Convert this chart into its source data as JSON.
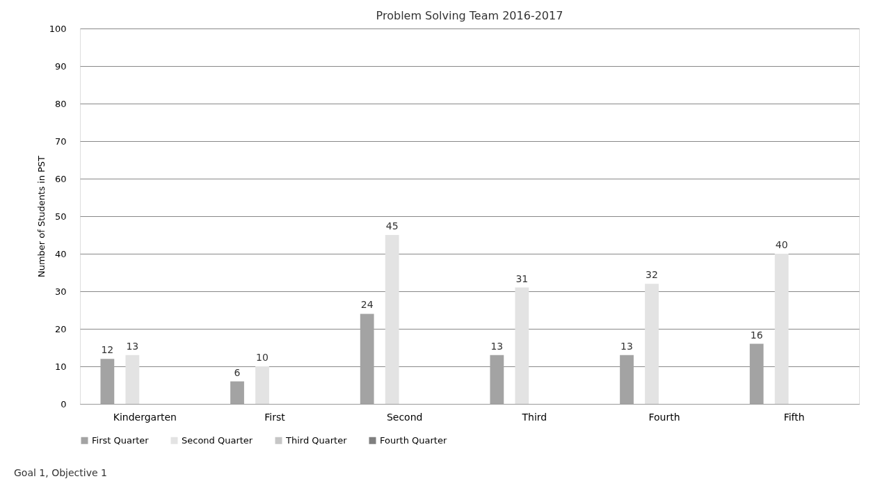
{
  "chart_data": {
    "type": "bar",
    "title": "Problem Solving Team 2016-2017",
    "ylabel": "Number of Students in PST",
    "categories": [
      "Kindergarten",
      "First",
      "Second",
      "Third",
      "Fourth",
      "Fifth"
    ],
    "series": [
      {
        "name": "First Quarter",
        "color": "#a3a3a3",
        "values": [
          12,
          6,
          24,
          13,
          13,
          16
        ]
      },
      {
        "name": "Second Quarter",
        "color": "#e3e3e3",
        "values": [
          13,
          10,
          45,
          31,
          32,
          40
        ]
      },
      {
        "name": "Third Quarter",
        "color": "#c6c6c6",
        "values": [
          null,
          null,
          null,
          null,
          null,
          null
        ]
      },
      {
        "name": "Fourth Quarter",
        "color": "#7f7f7f",
        "values": [
          null,
          null,
          null,
          null,
          null,
          null
        ]
      }
    ],
    "ylim": [
      0,
      100
    ],
    "yticks": [
      0,
      10,
      20,
      30,
      40,
      50,
      60,
      70,
      80,
      90,
      100
    ],
    "grid": "y",
    "legend": "bottom",
    "data_labels": true,
    "annotations": [
      "Goal 1, Objective 1"
    ]
  }
}
